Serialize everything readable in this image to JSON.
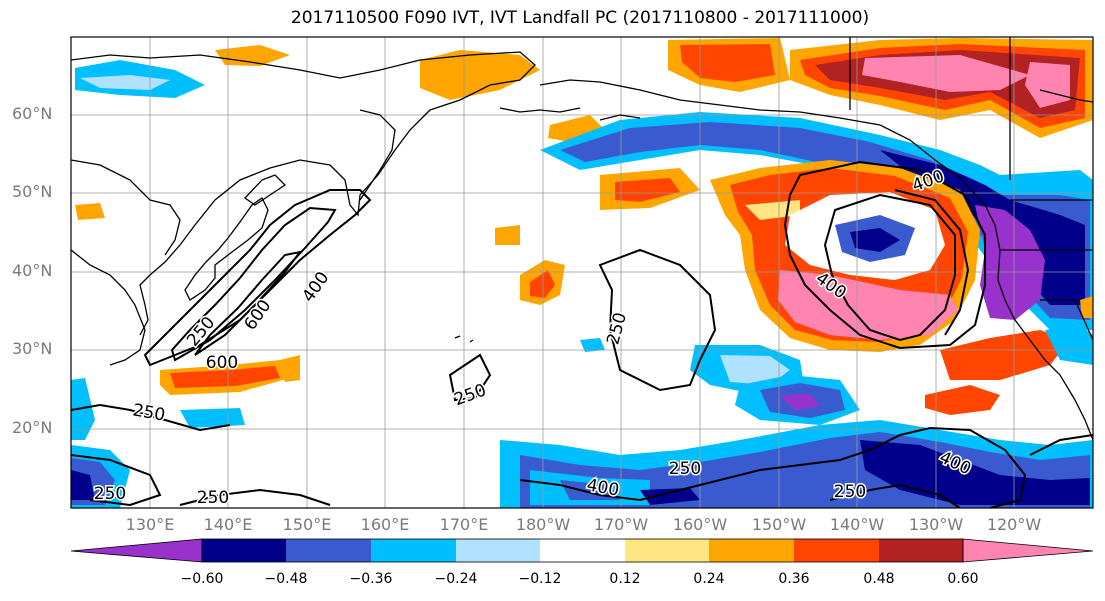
{
  "title": "2017110500 F090 IVT, IVT Landfall PC (2017110800 - 2017111000)",
  "latitude_labels": [
    "60°N",
    "50°N",
    "40°N",
    "30°N",
    "20°N"
  ],
  "longitude_labels": [
    "130°E",
    "140°E",
    "150°E",
    "160°E",
    "170°E",
    "180°W",
    "170°W",
    "160°W",
    "150°W",
    "140°W",
    "130°W",
    "120°W"
  ],
  "contour_labels": [
    "400",
    "600",
    "250",
    "600",
    "250",
    "250",
    "250",
    "400",
    "250",
    "400",
    "250",
    "400",
    "400",
    "250",
    "250"
  ],
  "colorbar": {
    "tick_labels": [
      "−0.60",
      "−0.48",
      "−0.36",
      "−0.24",
      "−0.12",
      "0.12",
      "0.24",
      "0.36",
      "0.48",
      "0.60"
    ],
    "colors": [
      "#9932cc",
      "#00008b",
      "#3a5bd0",
      "#00bfff",
      "#b0e2ff",
      "#ffffff",
      "#ffe680",
      "#ffa500",
      "#ff4500",
      "#b22222",
      "#ff85b0"
    ]
  },
  "map_colors": {
    "gridline": "#999999",
    "land_outline": "#000000",
    "frame": "#000000"
  }
}
